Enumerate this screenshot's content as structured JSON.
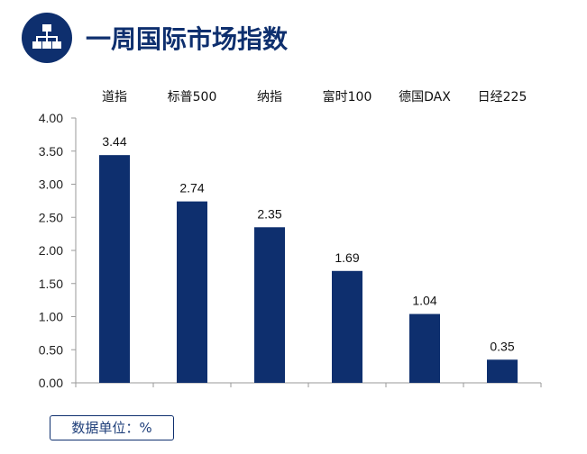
{
  "header": {
    "title": "一周国际市场指数",
    "icon": "hierarchy-icon"
  },
  "unit_label": "数据单位：%",
  "colors": {
    "bar": "#0e2f6e",
    "accent": "#0e2f6e"
  },
  "chart_data": {
    "type": "bar",
    "title": "",
    "xlabel": "",
    "ylabel": "",
    "categories": [
      "道指",
      "标普500",
      "纳指",
      "富时100",
      "德国DAX",
      "日经225"
    ],
    "values": [
      3.44,
      2.74,
      2.35,
      1.69,
      1.04,
      0.35
    ],
    "value_labels": [
      "3.44",
      "2.74",
      "2.35",
      "1.69",
      "1.04",
      "0.35"
    ],
    "yticks": [
      "0.00",
      "0.50",
      "1.00",
      "1.50",
      "2.00",
      "2.50",
      "3.00",
      "3.50",
      "4.00"
    ],
    "ylim": [
      0,
      4
    ],
    "grid": false,
    "legend": "none",
    "category_labels_position": "top"
  }
}
